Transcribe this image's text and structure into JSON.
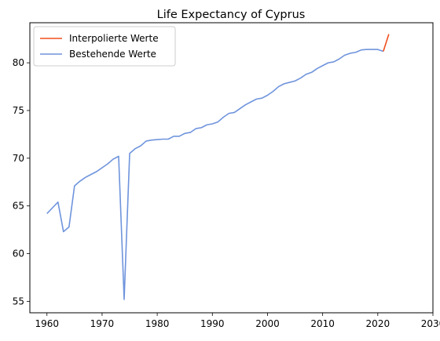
{
  "chart_data": {
    "type": "line",
    "title": "Life Expectancy of Cyprus",
    "xlabel": "",
    "ylabel": "",
    "xlim": [
      1956.9,
      2030
    ],
    "ylim": [
      53.8,
      84.2
    ],
    "xticks": [
      1960,
      1970,
      1980,
      1990,
      2000,
      2010,
      2020,
      2030
    ],
    "yticks": [
      55,
      60,
      65,
      70,
      75,
      80
    ],
    "grid": false,
    "legend_position": "top-left",
    "series": [
      {
        "name": "Interpolierte Werte",
        "color": "#f0501e",
        "x": [
          2021,
          2022
        ],
        "y": [
          81.2,
          83.0
        ]
      },
      {
        "name": "Bestehende Werte",
        "color": "#6f94dc",
        "x": [
          1960,
          1961,
          1962,
          1963,
          1964,
          1965,
          1966,
          1967,
          1968,
          1969,
          1970,
          1971,
          1972,
          1973,
          1974,
          1975,
          1976,
          1977,
          1978,
          1979,
          1980,
          1981,
          1982,
          1983,
          1984,
          1985,
          1986,
          1987,
          1988,
          1989,
          1990,
          1991,
          1992,
          1993,
          1994,
          1995,
          1996,
          1997,
          1998,
          1999,
          2000,
          2001,
          2002,
          2003,
          2004,
          2005,
          2006,
          2007,
          2008,
          2009,
          2010,
          2011,
          2012,
          2013,
          2014,
          2015,
          2016,
          2017,
          2018,
          2019,
          2020,
          2021
        ],
        "y": [
          64.2,
          64.8,
          65.4,
          62.3,
          62.8,
          67.1,
          67.6,
          68.0,
          68.3,
          68.6,
          69.0,
          69.4,
          69.9,
          70.2,
          55.2,
          70.5,
          71.0,
          71.3,
          71.8,
          71.9,
          71.95,
          72.0,
          72.0,
          72.3,
          72.3,
          72.6,
          72.7,
          73.1,
          73.2,
          73.5,
          73.6,
          73.8,
          74.3,
          74.7,
          74.8,
          75.2,
          75.6,
          75.9,
          76.2,
          76.3,
          76.6,
          77.0,
          77.5,
          77.8,
          77.95,
          78.1,
          78.4,
          78.8,
          79.0,
          79.4,
          79.7,
          80.0,
          80.1,
          80.4,
          80.8,
          81.0,
          81.1,
          81.35,
          81.4,
          81.4,
          81.4,
          81.2
        ]
      }
    ]
  }
}
